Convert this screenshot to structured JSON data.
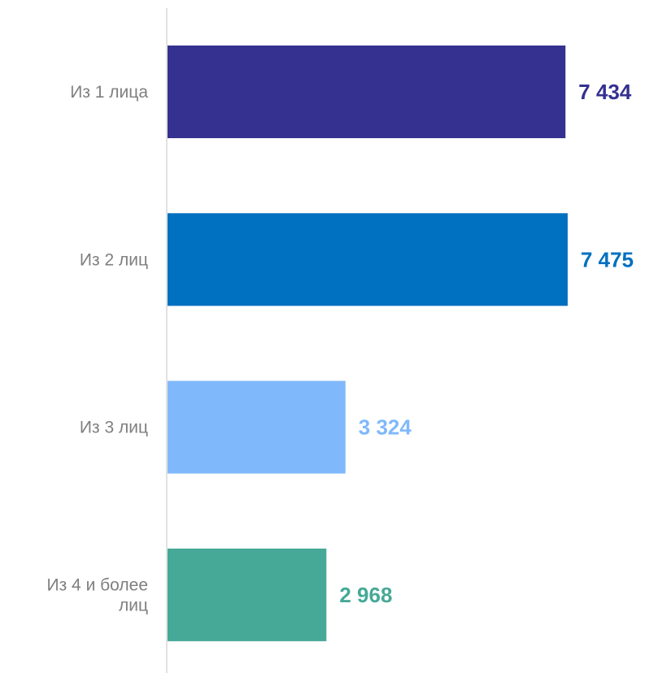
{
  "chart_data": {
    "type": "bar",
    "orientation": "horizontal",
    "categories": [
      [
        "Из 1 лица"
      ],
      [
        "Из 2 лиц"
      ],
      [
        "Из 3 лиц"
      ],
      [
        "Из 4 и более",
        "лиц"
      ]
    ],
    "values": [
      7434,
      7475,
      3324,
      2968
    ],
    "value_labels": [
      "7 434",
      "7 475",
      "3 324",
      "2 968"
    ],
    "colors": [
      "#353190",
      "#0070c0",
      "#80b9fb",
      "#46a997"
    ],
    "xlim": [
      0,
      7475
    ],
    "grid": false,
    "legend": "none"
  }
}
